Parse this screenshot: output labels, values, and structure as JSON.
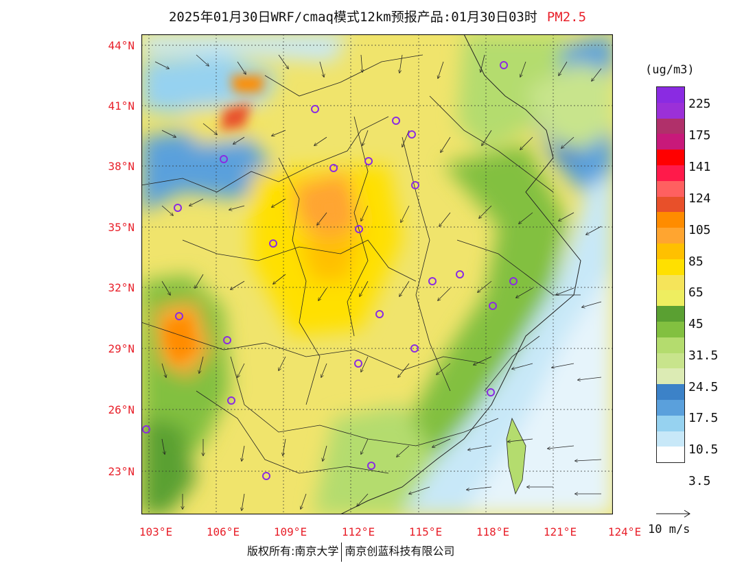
{
  "title": {
    "text": "2025年01月30日WRF/cmaq模式12km预报产品:01月30日03时",
    "pollutant": "PM2.5"
  },
  "axes": {
    "lat_labels": [
      "44°N",
      "41°N",
      "38°N",
      "35°N",
      "32°N",
      "29°N",
      "26°N",
      "23°N"
    ],
    "lon_labels": [
      "103°E",
      "106°E",
      "109°E",
      "112°E",
      "115°E",
      "118°E",
      "121°E",
      "124°E"
    ]
  },
  "colorbar": {
    "unit": "(ug/m3)",
    "colors": [
      "#8a2be2",
      "#9b30d8",
      "#b0306a",
      "#c8197a",
      "#ff0000",
      "#ff1a4a",
      "#ff6060",
      "#e8502a",
      "#ff8c00",
      "#ffa530",
      "#ffc000",
      "#ffe000",
      "#f5e45a",
      "#eeee60",
      "#5aa032",
      "#82c040",
      "#b4dc6e",
      "#c8e48c",
      "#dcebb4",
      "#3c82c8",
      "#5aa0dc",
      "#96d2f0",
      "#c8e8f8",
      "#ffffff"
    ],
    "labels": [
      "225",
      "175",
      "141",
      "124",
      "105",
      "85",
      "65",
      "45",
      "31.5",
      "24.5",
      "17.5",
      "10.5",
      "3.5"
    ]
  },
  "legend": {
    "wind_label": "10 m/s"
  },
  "footer": {
    "left": "版权所有:南京大学",
    "right": "南京创蓝科技有限公司"
  }
}
